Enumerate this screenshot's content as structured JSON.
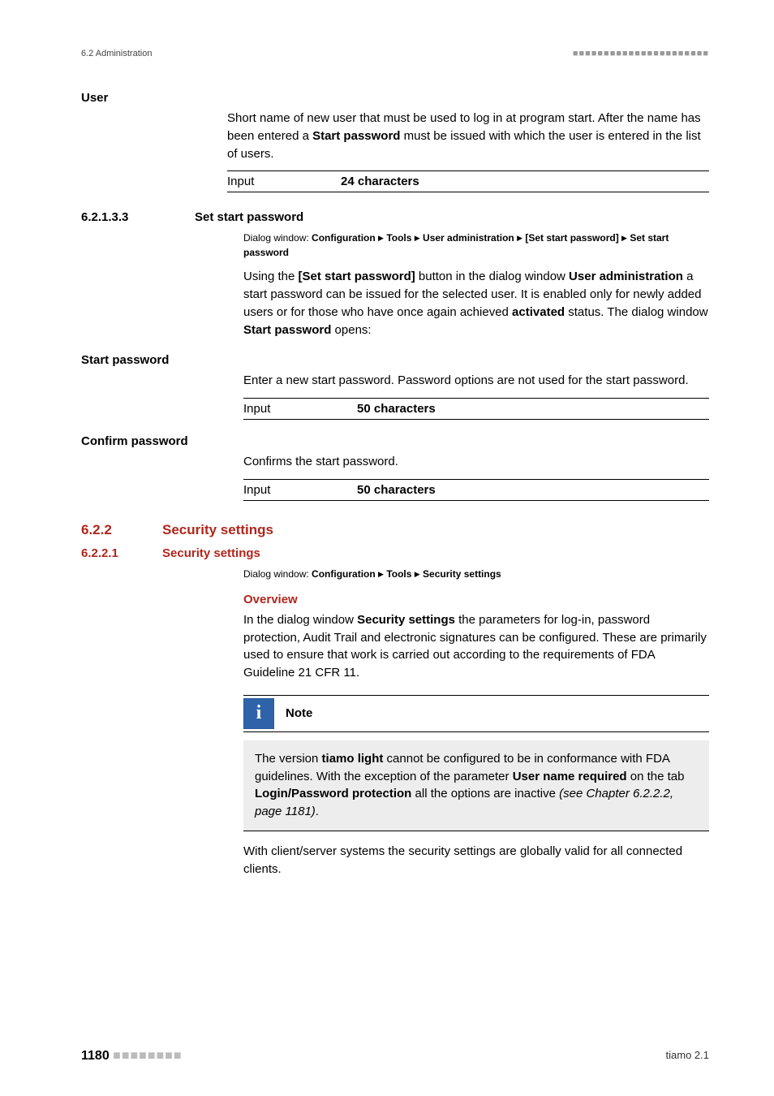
{
  "header": {
    "left": "6.2 Administration",
    "right_dots": "■■■■■■■■■■■■■■■■■■■■■■"
  },
  "user": {
    "label": "User",
    "desc_pre": "Short name of new user that must be used to log in at program start. After the name has been entered a ",
    "desc_bold": "Start password",
    "desc_post": " must be issued with which the user is entered in the list of users.",
    "input_label": "Input",
    "input_value": "24 characters"
  },
  "sec_62133": {
    "num": "6.2.1.3.3",
    "title": "Set start password",
    "breadcrumb_label": "Dialog window: ",
    "breadcrumb_parts": [
      "Configuration",
      "Tools",
      "User administration",
      "[Set start password]",
      "Set start password"
    ],
    "p1_a": "Using the ",
    "p1_b": "[Set start password]",
    "p1_c": " button in the dialog window ",
    "p1_d": "User administration",
    "p1_e": " a start password can be issued for the selected user. It is enabled only for newly added users or for those who have once again achieved ",
    "p1_f": "activated",
    "p1_g": " status. The dialog window ",
    "p1_h": "Start password",
    "p1_i": " opens:"
  },
  "start_password": {
    "label": "Start password",
    "desc": "Enter a new start password. Password options are not used for the start password.",
    "input_label": "Input",
    "input_value": "50 characters"
  },
  "confirm_password": {
    "label": "Confirm password",
    "desc": "Confirms the start password.",
    "input_label": "Input",
    "input_value": "50 characters"
  },
  "sec_622": {
    "num": "6.2.2",
    "title": "Security settings"
  },
  "sec_6221": {
    "num": "6.2.2.1",
    "title": "Security settings",
    "breadcrumb_label": "Dialog window: ",
    "breadcrumb_parts": [
      "Configuration",
      "Tools",
      "Security settings"
    ],
    "overview_title": "Overview",
    "p1_a": "In the dialog window ",
    "p1_b": "Security settings",
    "p1_c": " the parameters for log-in, password protection, Audit Trail and electronic signatures can be configured. These are primarily used to ensure that work is carried out according to the requirements of FDA Guideline 21 CFR 11."
  },
  "note": {
    "icon": "i",
    "title": "Note",
    "body_a": "The version ",
    "body_b": "tiamo light",
    "body_c": " cannot be configured to be in conformance with FDA guidelines. With the exception of the parameter ",
    "body_d": "User name required",
    "body_e": " on the tab ",
    "body_f": "Login/Password protection",
    "body_g": " all the options are inactive ",
    "body_h": "(see Chapter 6.2.2.2, page 1181)",
    "body_i": "."
  },
  "closing": "With client/server systems the security settings are globally valid for all connected clients.",
  "footer": {
    "page": "1180",
    "dots": "■■■■■■■■",
    "right": "tiamo 2.1"
  }
}
